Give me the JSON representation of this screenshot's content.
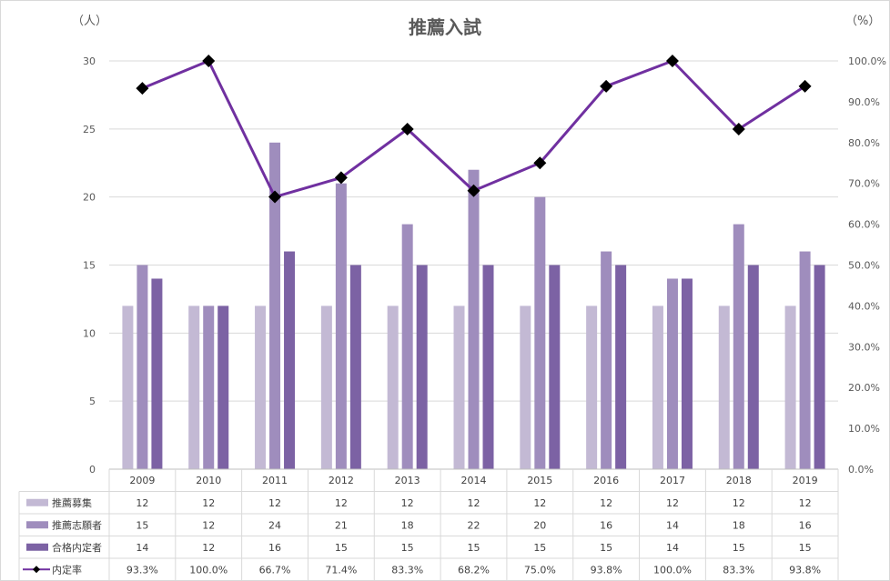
{
  "chart_data": {
    "type": "bar",
    "title": "推薦入試",
    "left_axis_unit": "（人）",
    "right_axis_unit": "（%）",
    "categories": [
      "2009",
      "2010",
      "2011",
      "2012",
      "2013",
      "2014",
      "2015",
      "2016",
      "2017",
      "2018",
      "2019"
    ],
    "y_left_ticks": [
      "0",
      "5",
      "10",
      "15",
      "20",
      "25",
      "30"
    ],
    "y_right_ticks": [
      "0.0%",
      "10.0%",
      "20.0%",
      "30.0%",
      "40.0%",
      "50.0%",
      "60.0%",
      "70.0%",
      "80.0%",
      "90.0%",
      "100.0%"
    ],
    "ylim_left": [
      0,
      30
    ],
    "ylim_right": [
      0,
      100
    ],
    "grid": true,
    "legend": "data-table",
    "series": [
      {
        "name": "推薦募集",
        "kind": "bar",
        "axis": "left",
        "color": "#c3b9d4",
        "values": [
          12,
          12,
          12,
          12,
          12,
          12,
          12,
          12,
          12,
          12,
          12
        ],
        "labels": [
          "12",
          "12",
          "12",
          "12",
          "12",
          "12",
          "12",
          "12",
          "12",
          "12",
          "12"
        ]
      },
      {
        "name": "推薦志願者",
        "kind": "bar",
        "axis": "left",
        "color": "#9f8dbd",
        "values": [
          15,
          12,
          24,
          21,
          18,
          22,
          20,
          16,
          14,
          18,
          16
        ],
        "labels": [
          "15",
          "12",
          "24",
          "21",
          "18",
          "22",
          "20",
          "16",
          "14",
          "18",
          "16"
        ]
      },
      {
        "name": "合格内定者",
        "kind": "bar",
        "axis": "left",
        "color": "#7c62a4",
        "values": [
          14,
          12,
          16,
          15,
          15,
          15,
          15,
          15,
          14,
          15,
          15
        ],
        "labels": [
          "14",
          "12",
          "16",
          "15",
          "15",
          "15",
          "15",
          "15",
          "14",
          "15",
          "15"
        ]
      },
      {
        "name": "内定率",
        "kind": "line",
        "axis": "right",
        "color": "#7030a0",
        "marker_color": "#000000",
        "values": [
          93.3,
          100.0,
          66.7,
          71.4,
          83.3,
          68.2,
          75.0,
          93.8,
          100.0,
          83.3,
          93.8
        ],
        "labels": [
          "93.3%",
          "100.0%",
          "66.7%",
          "71.4%",
          "83.3%",
          "68.2%",
          "75.0%",
          "93.8%",
          "100.0%",
          "83.3%",
          "93.8%"
        ]
      }
    ]
  }
}
